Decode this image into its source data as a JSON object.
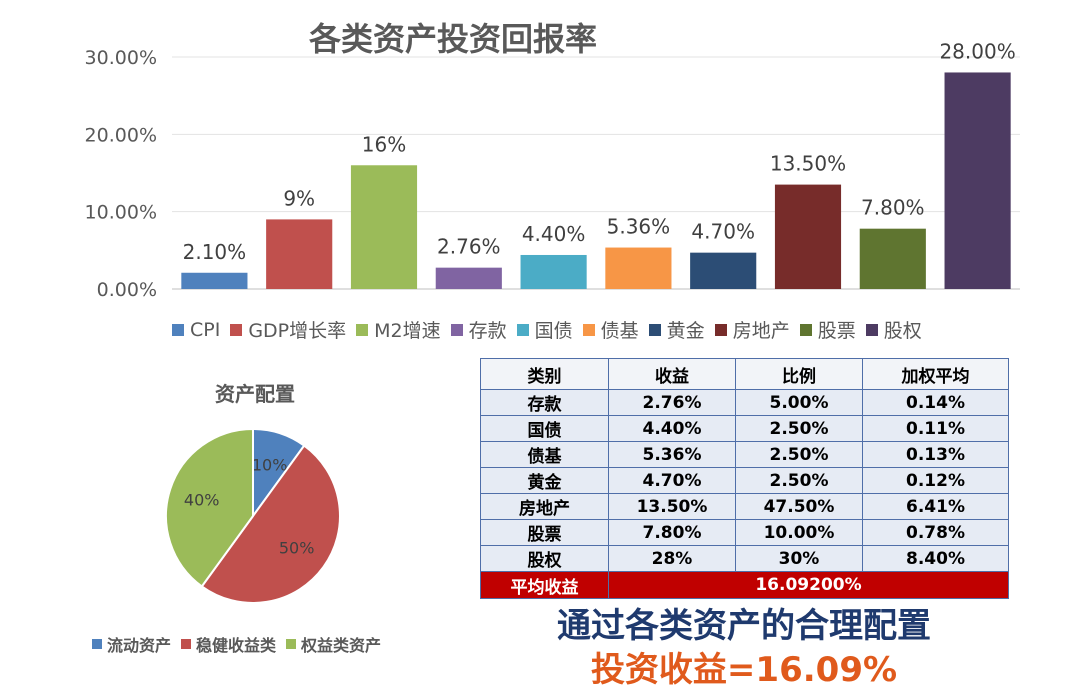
{
  "chart_data": [
    {
      "type": "bar",
      "title": "各类资产投资回报率",
      "categories": [
        "CPI",
        "GDP增长率",
        "M2增速",
        "存款",
        "国债",
        "债基",
        "黄金",
        "房地产",
        "股票",
        "股权"
      ],
      "values": [
        2.1,
        9,
        16,
        2.76,
        4.4,
        5.36,
        4.7,
        13.5,
        7.8,
        28.0
      ],
      "data_labels": [
        "2.10%",
        "9%",
        "16%",
        "2.76%",
        "4.40%",
        "5.36%",
        "4.70%",
        "13.50%",
        "7.80%",
        "28.00%"
      ],
      "colors": [
        "#4f81bd",
        "#c0504d",
        "#9bbb59",
        "#8064a2",
        "#4bacc6",
        "#f79646",
        "#2c4d75",
        "#772c2a",
        "#5f7530",
        "#4d3b62"
      ],
      "ylim": [
        0,
        30
      ],
      "yticks": [
        "0.00%",
        "10.00%",
        "20.00%",
        "30.00%"
      ],
      "grid": true,
      "legend": "bottom"
    },
    {
      "type": "pie",
      "title": "资产配置",
      "labels": [
        "流动资产",
        "稳健收益类",
        "权益类资产"
      ],
      "values": [
        10,
        50,
        40
      ],
      "data_labels": [
        "10%",
        "50%",
        "40%"
      ],
      "colors": [
        "#4f81bd",
        "#c0504d",
        "#9bbb59"
      ],
      "legend": "bottom"
    },
    {
      "type": "table",
      "columns": [
        "类别",
        "收益",
        "比例",
        "加权平均"
      ],
      "rows": [
        [
          "存款",
          "2.76%",
          "5.00%",
          "0.14%"
        ],
        [
          "国债",
          "4.40%",
          "2.50%",
          "0.11%"
        ],
        [
          "债基",
          "5.36%",
          "2.50%",
          "0.13%"
        ],
        [
          "黄金",
          "4.70%",
          "2.50%",
          "0.12%"
        ],
        [
          "房地产",
          "13.50%",
          "47.50%",
          "6.41%"
        ],
        [
          "股票",
          "7.80%",
          "10.00%",
          "0.78%"
        ],
        [
          "股权",
          "28%",
          "30%",
          "8.40%"
        ]
      ],
      "summary": {
        "label": "平均收益",
        "value": "16.09200%"
      }
    }
  ],
  "slogan": {
    "line1": "通过各类资产的合理配置",
    "line2": "投资收益=16.09%"
  }
}
